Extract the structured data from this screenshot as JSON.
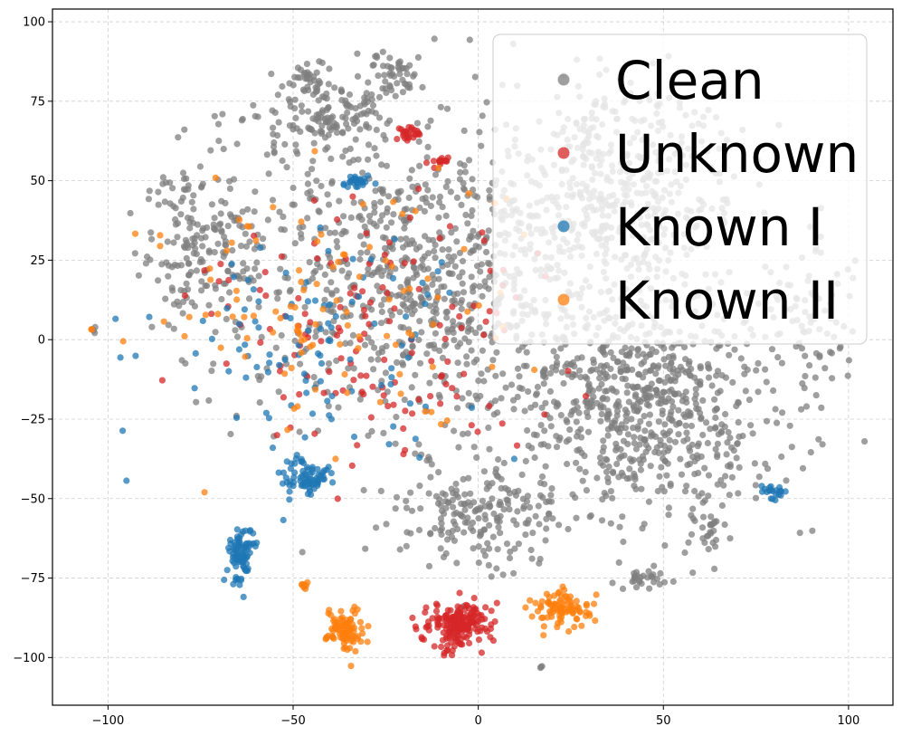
{
  "chart_data": {
    "type": "scatter",
    "title": "",
    "xlabel": "",
    "ylabel": "",
    "xlim": [
      -115,
      112
    ],
    "ylim": [
      -115,
      104
    ],
    "xticks": [
      -100,
      -50,
      0,
      50,
      100
    ],
    "yticks": [
      -100,
      -75,
      -50,
      -25,
      0,
      25,
      50,
      75,
      100
    ],
    "grid": true,
    "legend_position": "top-right",
    "series": [
      {
        "name": "Clean",
        "color": "#7f7f7f",
        "clusters": [
          {
            "cx": -10,
            "cy": 20,
            "sx": 45,
            "sy": 40,
            "n": 900
          },
          {
            "cx": 45,
            "cy": -20,
            "sx": 30,
            "sy": 30,
            "n": 700
          },
          {
            "cx": 40,
            "cy": 50,
            "sx": 25,
            "sy": 25,
            "n": 400
          },
          {
            "cx": -40,
            "cy": 70,
            "sx": 15,
            "sy": 12,
            "n": 150
          },
          {
            "cx": -22,
            "cy": 85,
            "sx": 5,
            "sy": 6,
            "n": 40
          },
          {
            "cx": -45,
            "cy": 82,
            "sx": 5,
            "sy": 5,
            "n": 30
          },
          {
            "cx": 0,
            "cy": -55,
            "sx": 20,
            "sy": 15,
            "n": 200
          },
          {
            "cx": 90,
            "cy": 5,
            "sx": 10,
            "sy": 20,
            "n": 80
          },
          {
            "cx": 45,
            "cy": -75,
            "sx": 6,
            "sy": 4,
            "n": 30
          },
          {
            "cx": 62,
            "cy": -60,
            "sx": 5,
            "sy": 8,
            "n": 30
          },
          {
            "cx": -75,
            "cy": 30,
            "sx": 12,
            "sy": 30,
            "n": 180
          },
          {
            "cx": -104,
            "cy": 3,
            "sx": 0.5,
            "sy": 1,
            "n": 4
          },
          {
            "cx": 17,
            "cy": -103,
            "sx": 0.6,
            "sy": 0.4,
            "n": 3
          }
        ]
      },
      {
        "name": "Unknown",
        "color": "#d62728",
        "clusters": [
          {
            "cx": -5,
            "cy": -90,
            "sx": 7,
            "sy": 6,
            "n": 180
          },
          {
            "cx": -18,
            "cy": 65,
            "sx": 3,
            "sy": 1.5,
            "n": 25
          },
          {
            "cx": -10,
            "cy": 56,
            "sx": 2,
            "sy": 1.5,
            "n": 15
          },
          {
            "cx": -30,
            "cy": 0,
            "sx": 40,
            "sy": 35,
            "n": 140
          }
        ]
      },
      {
        "name": "Known I",
        "color": "#1f77b4",
        "clusters": [
          {
            "cx": -64,
            "cy": -68,
            "sx": 3,
            "sy": 7,
            "n": 90
          },
          {
            "cx": -47,
            "cy": -43,
            "sx": 6,
            "sy": 4,
            "n": 70
          },
          {
            "cx": -33,
            "cy": 50,
            "sx": 3,
            "sy": 2,
            "n": 25
          },
          {
            "cx": 80,
            "cy": -48,
            "sx": 2.5,
            "sy": 1.5,
            "n": 22
          },
          {
            "cx": -45,
            "cy": 0,
            "sx": 35,
            "sy": 30,
            "n": 110
          }
        ]
      },
      {
        "name": "Known II",
        "color": "#ff7f0e",
        "clusters": [
          {
            "cx": -36,
            "cy": -91,
            "sx": 4,
            "sy": 6,
            "n": 90
          },
          {
            "cx": 23,
            "cy": -85,
            "sx": 7,
            "sy": 5,
            "n": 90
          },
          {
            "cx": -47,
            "cy": -77,
            "sx": 1.2,
            "sy": 1.5,
            "n": 8
          },
          {
            "cx": -104,
            "cy": 3,
            "sx": 0.4,
            "sy": 0.5,
            "n": 2
          },
          {
            "cx": -40,
            "cy": 10,
            "sx": 40,
            "sy": 35,
            "n": 110
          }
        ]
      }
    ]
  }
}
